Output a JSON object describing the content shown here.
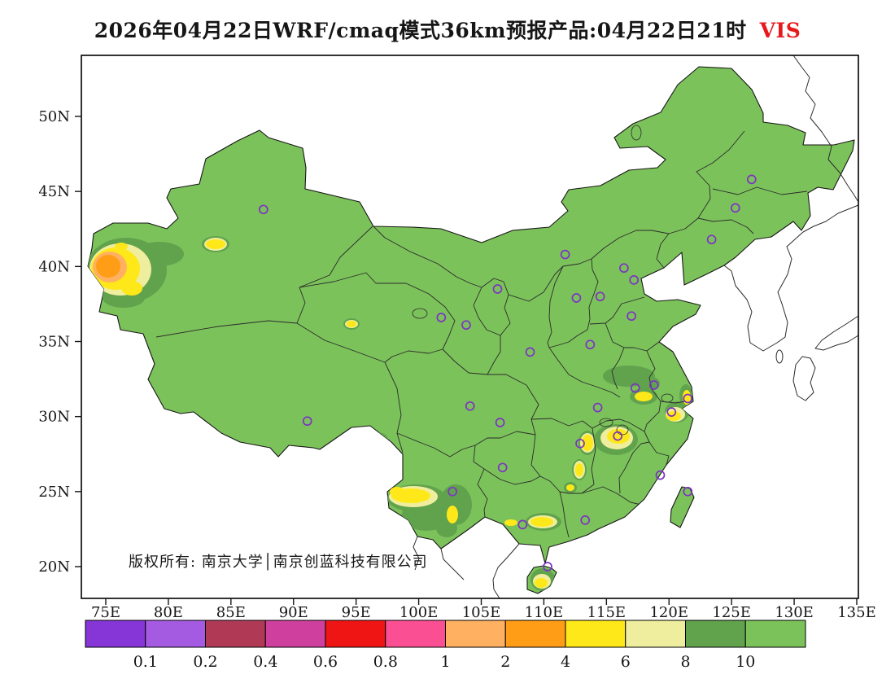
{
  "title": {
    "text": "2026年04月22日WRF/cmaq模式36km预报产品:04月22日21时",
    "variable": "VIS"
  },
  "copyright": "版权所有: 南京大学│南京创蓝科技有限公司",
  "colors": {
    "title_variable": "#e8191c",
    "station_marker": "#7d33c4"
  },
  "axes": {
    "lat_ticks": [
      {
        "label": "50N",
        "value": 50
      },
      {
        "label": "45N",
        "value": 45
      },
      {
        "label": "40N",
        "value": 40
      },
      {
        "label": "35N",
        "value": 35
      },
      {
        "label": "30N",
        "value": 30
      },
      {
        "label": "25N",
        "value": 25
      },
      {
        "label": "20N",
        "value": 20
      }
    ],
    "lon_ticks": [
      {
        "label": "75E",
        "value": 75
      },
      {
        "label": "80E",
        "value": 80
      },
      {
        "label": "85E",
        "value": 85
      },
      {
        "label": "90E",
        "value": 90
      },
      {
        "label": "95E",
        "value": 95
      },
      {
        "label": "100E",
        "value": 100
      },
      {
        "label": "105E",
        "value": 105
      },
      {
        "label": "110E",
        "value": 110
      },
      {
        "label": "115E",
        "value": 115
      },
      {
        "label": "120E",
        "value": 120
      },
      {
        "label": "125E",
        "value": 125
      },
      {
        "label": "130E",
        "value": 130
      },
      {
        "label": "135E",
        "value": 135
      }
    ]
  },
  "colorbar": {
    "boundary_labels": [
      "0.1",
      "0.2",
      "0.4",
      "0.6",
      "0.8",
      "1",
      "2",
      "4",
      "6",
      "8",
      "10"
    ],
    "colors": [
      "#8636d6",
      "#a55ae2",
      "#b03a56",
      "#cf3f9d",
      "#f01515",
      "#fb4f93",
      "#ffb061",
      "#ff9d17",
      "#ffe81a",
      "#eeee9e",
      "#61a24d",
      "#7cc25b"
    ]
  },
  "stations": [
    [
      87.6,
      43.8
    ],
    [
      126.6,
      45.8
    ],
    [
      125.3,
      43.9
    ],
    [
      123.4,
      41.8
    ],
    [
      111.7,
      40.8
    ],
    [
      116.4,
      39.9
    ],
    [
      117.2,
      39.1
    ],
    [
      114.5,
      38.0
    ],
    [
      106.3,
      38.5
    ],
    [
      112.6,
      37.9
    ],
    [
      117.0,
      36.7
    ],
    [
      101.8,
      36.6
    ],
    [
      103.8,
      36.1
    ],
    [
      113.7,
      34.8
    ],
    [
      108.9,
      34.3
    ],
    [
      117.3,
      31.9
    ],
    [
      118.8,
      32.1
    ],
    [
      121.5,
      31.2
    ],
    [
      120.2,
      30.3
    ],
    [
      114.3,
      30.6
    ],
    [
      104.1,
      30.7
    ],
    [
      91.1,
      29.7
    ],
    [
      106.5,
      29.6
    ],
    [
      115.9,
      28.7
    ],
    [
      112.9,
      28.2
    ],
    [
      106.7,
      26.6
    ],
    [
      119.3,
      26.1
    ],
    [
      102.7,
      25.0
    ],
    [
      121.5,
      25.0
    ],
    [
      113.3,
      23.1
    ],
    [
      108.3,
      22.8
    ],
    [
      110.3,
      20.0
    ]
  ]
}
